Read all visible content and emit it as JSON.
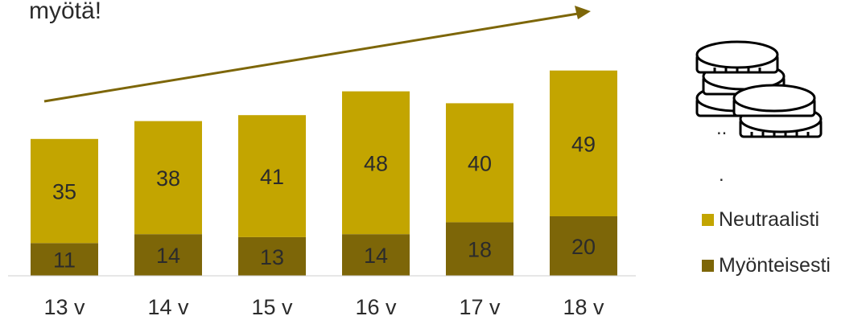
{
  "headline": "myötä!",
  "colors": {
    "neutral": "#c3a500",
    "positive": "#7d6608",
    "arrow": "#7d6608"
  },
  "decoration": {
    "icon": "coin-stack-icon",
    "dots_top": "..",
    "dots_bottom": "."
  },
  "legend": [
    {
      "key": "neutral",
      "label": "Neutraalisti",
      "color": "#c3a500"
    },
    {
      "key": "positive",
      "label": "Myönteisesti",
      "color": "#7d6608"
    }
  ],
  "chart_data": {
    "type": "bar",
    "stacked": true,
    "categories": [
      "13 v",
      "14 v",
      "15 v",
      "16 v",
      "17 v",
      "18 v"
    ],
    "series": [
      {
        "name": "Myönteisesti",
        "values": [
          11,
          14,
          13,
          14,
          18,
          20
        ],
        "color": "#7d6608"
      },
      {
        "name": "Neutraalisti",
        "values": [
          35,
          38,
          41,
          48,
          40,
          49
        ],
        "color": "#c3a500"
      }
    ],
    "title": "",
    "xlabel": "",
    "ylabel": "",
    "ylim": [
      0,
      74
    ],
    "grid": false,
    "legend_position": "right",
    "annotation": "upward trend arrow"
  }
}
